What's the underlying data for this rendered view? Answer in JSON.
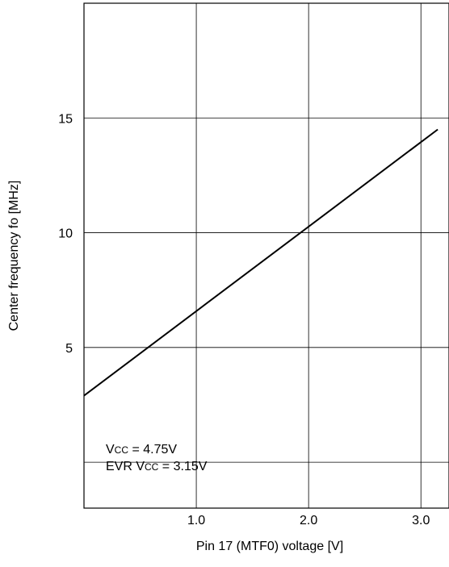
{
  "chart_data": {
    "type": "line",
    "xlabel": "Pin 17 (MTF0) voltage [V]",
    "ylabel": "Center frequency fo [MHz]",
    "xlim": [
      0,
      3.25
    ],
    "ylim": [
      -2,
      20
    ],
    "x_ticks": [
      1.0,
      2.0,
      3.0
    ],
    "x_tick_labels": [
      "1.0",
      "2.0",
      "3.0"
    ],
    "y_ticks": [
      5,
      10,
      15
    ],
    "y_tick_labels": [
      "5",
      "10",
      "15"
    ],
    "grid": true,
    "series": [
      {
        "x": [
          0.0,
          3.15
        ],
        "y": [
          2.9,
          14.5
        ]
      }
    ],
    "annotations": [
      {
        "main": "V",
        "sub": "CC",
        "rest": " = 4.75V"
      },
      {
        "main": "EVR V",
        "sub": "CC",
        "rest": " = 3.15V"
      }
    ]
  }
}
